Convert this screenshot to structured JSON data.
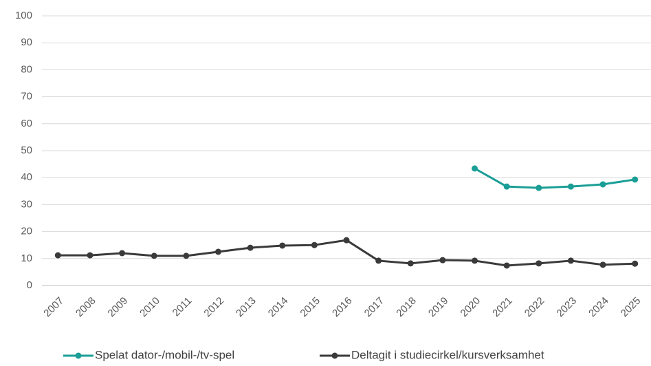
{
  "chart_data": {
    "type": "line",
    "categories": [
      "2007",
      "2008",
      "2009",
      "2010",
      "2011",
      "2012",
      "2013",
      "2014",
      "2015",
      "2016",
      "2017",
      "2018",
      "2019",
      "2020",
      "2021",
      "2022",
      "2023",
      "2024",
      "2025"
    ],
    "series": [
      {
        "name": "Spelat dator-/mobil-/tv-spel",
        "color": "#1a9e96",
        "values": [
          null,
          null,
          null,
          null,
          null,
          null,
          null,
          null,
          null,
          null,
          null,
          null,
          null,
          43.4,
          36.7,
          36.2,
          36.7,
          37.5,
          39.3
        ]
      },
      {
        "name": "Deltagit i studiecirkel/kursverksamhet",
        "color": "#3a3a3a",
        "values": [
          11.2,
          11.2,
          12.0,
          11.0,
          11.0,
          12.5,
          14.0,
          14.8,
          15.0,
          16.8,
          9.2,
          8.2,
          9.4,
          9.2,
          7.4,
          8.2,
          9.2,
          7.7,
          8.1
        ]
      }
    ],
    "ylim": [
      0,
      100
    ],
    "yticks": [
      0,
      10,
      20,
      30,
      40,
      50,
      60,
      70,
      80,
      90,
      100
    ],
    "grid": true,
    "legend": "bottom"
  }
}
